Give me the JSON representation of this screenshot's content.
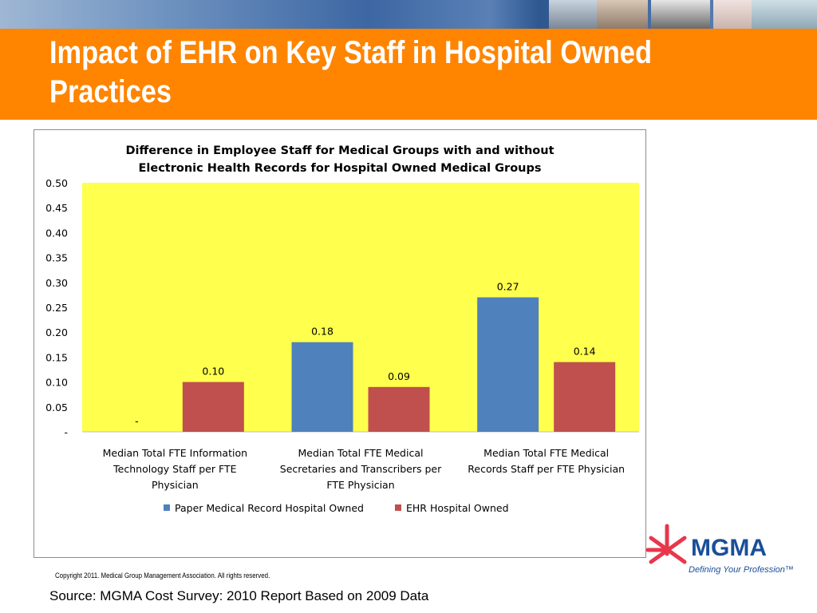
{
  "slide": {
    "title": "Impact of EHR on Key Staff in Hospital Owned Practices",
    "copyright": "Copyright 2011. Medical Group Management Association. All rights reserved.",
    "source": "Source:  MGMA Cost Survey: 2010 Report Based on 2009 Data",
    "banner_color": "#ff8400"
  },
  "logo": {
    "name": "MGMA",
    "tagline": "Defining Your Profession™",
    "colors": {
      "text": "#1a4f99",
      "mark": "#e8374b"
    }
  },
  "chart_data": {
    "type": "bar",
    "title_lines": [
      "Difference in Employee Staff for Medical Groups with and without",
      "Electronic Health Records for Hospital Owned Medical Groups"
    ],
    "categories": [
      [
        "Median Total FTE Information",
        "Technology Staff per FTE",
        "Physician"
      ],
      [
        "Median Total FTE Medical",
        "Secretaries and Transcribers   per",
        "FTE Physician"
      ],
      [
        "Median Total FTE Medical",
        "Records Staff per FTE Physician"
      ]
    ],
    "series": [
      {
        "name": "Paper Medical Record Hospital Owned",
        "color": "#4f81bd",
        "values": [
          0,
          0.18,
          0.27
        ],
        "labels": [
          "-",
          "0.18",
          "0.27"
        ]
      },
      {
        "name": "EHR Hospital Owned",
        "color": "#c0504d",
        "values": [
          0.1,
          0.09,
          0.14
        ],
        "labels": [
          "0.10",
          "0.09",
          "0.14"
        ]
      }
    ],
    "ylim": [
      0,
      0.5
    ],
    "yticks": [
      "-",
      "0.05",
      "0.10",
      "0.15",
      "0.20",
      "0.25",
      "0.30",
      "0.35",
      "0.40",
      "0.45",
      "0.50"
    ],
    "plot_background": "#ffff4d",
    "grid": false,
    "legend_position": "bottom"
  }
}
